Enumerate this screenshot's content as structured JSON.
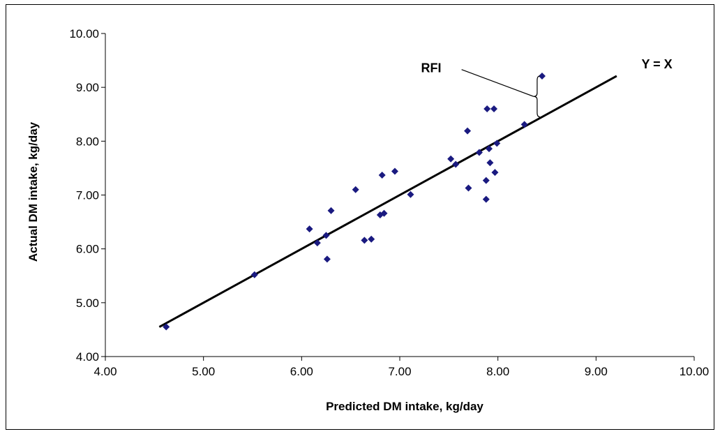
{
  "chart_data": {
    "type": "scatter",
    "xlabel": "Predicted DM intake, kg/day",
    "ylabel": "Actual DM intake, kg/day",
    "xlim": [
      4.0,
      10.0
    ],
    "ylim": [
      4.0,
      10.0
    ],
    "x_ticks": [
      "4.00",
      "5.00",
      "6.00",
      "7.00",
      "8.00",
      "9.00",
      "10.00"
    ],
    "y_ticks": [
      "4.00",
      "5.00",
      "6.00",
      "7.00",
      "8.00",
      "9.00",
      "10.00"
    ],
    "grid": false,
    "legend": "none",
    "colors": {
      "points": "#1a1a80",
      "line": "#000000"
    },
    "series": [
      {
        "values": [
          {
            "x": 4.62,
            "y": 4.55
          },
          {
            "x": 5.52,
            "y": 5.52
          },
          {
            "x": 6.08,
            "y": 6.37
          },
          {
            "x": 6.16,
            "y": 6.11
          },
          {
            "x": 6.25,
            "y": 6.25
          },
          {
            "x": 6.26,
            "y": 5.81
          },
          {
            "x": 6.3,
            "y": 6.71
          },
          {
            "x": 6.55,
            "y": 7.1
          },
          {
            "x": 6.64,
            "y": 6.16
          },
          {
            "x": 6.71,
            "y": 6.18
          },
          {
            "x": 6.8,
            "y": 6.63
          },
          {
            "x": 6.82,
            "y": 7.37
          },
          {
            "x": 6.84,
            "y": 6.66
          },
          {
            "x": 6.95,
            "y": 7.44
          },
          {
            "x": 7.11,
            "y": 7.01
          },
          {
            "x": 7.52,
            "y": 7.67
          },
          {
            "x": 7.57,
            "y": 7.57
          },
          {
            "x": 7.69,
            "y": 8.19
          },
          {
            "x": 7.7,
            "y": 7.13
          },
          {
            "x": 7.81,
            "y": 7.79
          },
          {
            "x": 7.88,
            "y": 7.27
          },
          {
            "x": 7.88,
            "y": 6.92
          },
          {
            "x": 7.89,
            "y": 8.6
          },
          {
            "x": 7.91,
            "y": 7.86
          },
          {
            "x": 7.92,
            "y": 7.6
          },
          {
            "x": 7.96,
            "y": 8.6
          },
          {
            "x": 7.97,
            "y": 7.42
          },
          {
            "x": 7.99,
            "y": 7.96
          },
          {
            "x": 8.27,
            "y": 8.31
          },
          {
            "x": 8.45,
            "y": 9.21
          }
        ]
      }
    ],
    "reference_line": {
      "label": "Y = X",
      "from": 4.55,
      "to": 9.21
    },
    "annotation": {
      "label": "RFI"
    }
  }
}
